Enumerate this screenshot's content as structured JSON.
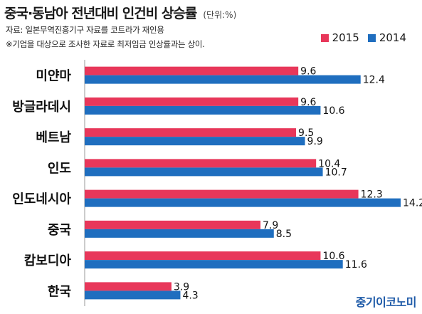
{
  "header": {
    "title": "중국·동남아 전년대비 인건비 상승률",
    "unit": "(단위:%)"
  },
  "notes": {
    "source": "자료: 일본무역진흥기구 자료를 코트라가 재인용",
    "remark": "※기업을 대상으로 조사한 자료로 최저임금 인상률과는 상이."
  },
  "brand": "중기이코노미",
  "colors": {
    "series_2015": "#e8375a",
    "series_2014": "#1f6ebf",
    "axis": "#999999"
  },
  "chart_data": {
    "type": "bar",
    "orientation": "horizontal",
    "title": "중국·동남아 전년대비 인건비 상승률",
    "unit": "%",
    "categories": [
      "미얀마",
      "방글라데시",
      "베트남",
      "인도",
      "인도네시아",
      "중국",
      "캄보디아",
      "한국"
    ],
    "series": [
      {
        "name": "2015",
        "values": [
          9.6,
          9.6,
          9.5,
          10.4,
          12.3,
          7.9,
          10.6,
          3.9
        ]
      },
      {
        "name": "2014",
        "values": [
          12.4,
          10.6,
          9.9,
          10.7,
          14.2,
          8.5,
          11.6,
          4.3
        ]
      }
    ],
    "value_labels": {
      "2015": [
        "9.6",
        "9.6",
        "9.5",
        "10.4",
        "12.3",
        "7.9",
        "10.6",
        "3.9"
      ],
      "2014": [
        "12.4",
        "10.6",
        "9.9",
        "10.7",
        "14.2",
        "8.5",
        "11.6",
        "4.3"
      ]
    },
    "xlim": [
      0,
      14.2
    ],
    "grid": false,
    "legend_position": "top-right"
  }
}
